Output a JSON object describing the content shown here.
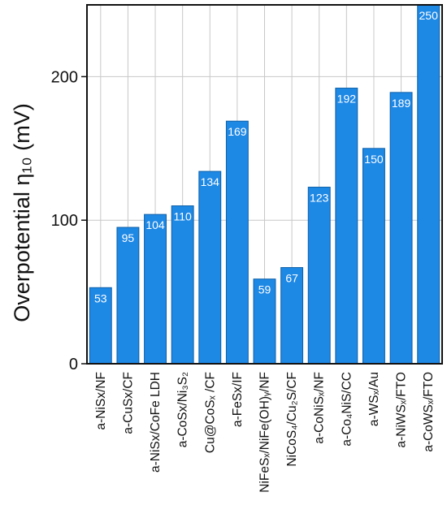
{
  "chart_data": {
    "type": "bar",
    "ylabel": "Overpotential η₁₀ (mV)",
    "ylim": [
      0,
      250
    ],
    "yticks": [
      0,
      100,
      200
    ],
    "grid": true,
    "bar_color": "#1e88e5",
    "bar_edge_color": "#0b5fa8",
    "categories": [
      "a-NiSx/NF",
      "a-CuSx/CF",
      "a-NiSx/CoFe LDH",
      "a-CoSx/Ni₃S₂",
      "Cu@CoSₓ /CF",
      "a-FeSx/IF",
      "NiFeSₓ/NiFe(OH)ᵧ/NF",
      "NiCoS₄/Cu₂S/CF",
      "a-CoNiSₓ/NF",
      "a-Co₄NiS/CC",
      "a-WSₓ/Au",
      "a-NiWSₓ/FTO",
      "a-CoWSₓ/FTO"
    ],
    "values": [
      53,
      95,
      104,
      110,
      134,
      169,
      59,
      67,
      123,
      192,
      150,
      189,
      250
    ]
  }
}
